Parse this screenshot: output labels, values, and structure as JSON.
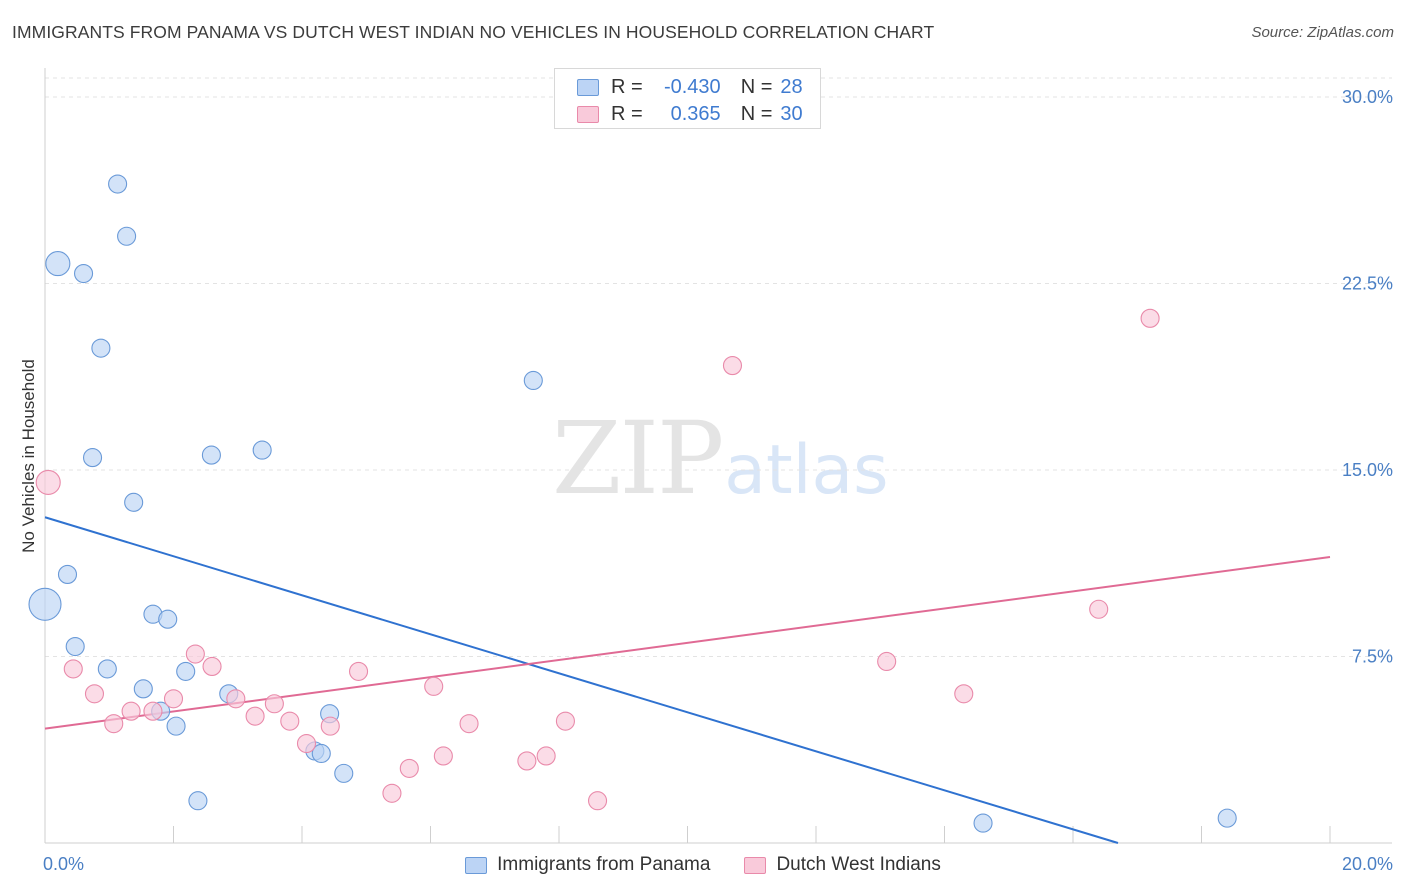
{
  "header": {
    "title": "IMMIGRANTS FROM PANAMA VS DUTCH WEST INDIAN NO VEHICLES IN HOUSEHOLD CORRELATION CHART",
    "source": "Source: ZipAtlas.com"
  },
  "watermark": {
    "part1": "ZIP",
    "part2": "atlas"
  },
  "legend": {
    "rows": [
      {
        "r_label": "R =",
        "r_value": "-0.430",
        "n_label": "N =",
        "n_value": "28",
        "color": "#6a9ad8"
      },
      {
        "r_label": "R =",
        "r_value": "0.365",
        "n_label": "N =",
        "n_value": "30",
        "color": "#e98aaa"
      }
    ]
  },
  "bottom_legend": {
    "items": [
      {
        "label": "Immigrants from Panama",
        "color": "#6a9ad8"
      },
      {
        "label": "Dutch West Indians",
        "color": "#e98aaa"
      }
    ]
  },
  "chart_data": {
    "type": "scatter",
    "title": "IMMIGRANTS FROM PANAMA VS DUTCH WEST INDIAN NO VEHICLES IN HOUSEHOLD CORRELATION CHART",
    "xlabel": "",
    "ylabel": "No Vehicles in Household",
    "xlim": [
      0,
      20
    ],
    "ylim": [
      0,
      30
    ],
    "x_tick_labels": [
      "0.0%",
      "20.0%"
    ],
    "y_ticks": [
      7.5,
      15.0,
      22.5,
      30.0
    ],
    "y_tick_labels": [
      "7.5%",
      "15.0%",
      "22.5%",
      "30.0%"
    ],
    "grid": "horizontal dashed",
    "legend_position": "top-center",
    "series": [
      {
        "name": "Immigrants from Panama",
        "color": "#6a9ad8",
        "fill": "#bcd4f5",
        "trend": {
          "x": [
            0,
            16.7
          ],
          "y": [
            13.1,
            0
          ]
        },
        "points": [
          {
            "x": 0.2,
            "y": 23.3
          },
          {
            "x": 0.6,
            "y": 22.9
          },
          {
            "x": 1.13,
            "y": 26.5
          },
          {
            "x": 1.27,
            "y": 24.4
          },
          {
            "x": 0.87,
            "y": 19.9
          },
          {
            "x": 0.74,
            "y": 15.5
          },
          {
            "x": 1.38,
            "y": 13.7
          },
          {
            "x": 0.35,
            "y": 10.8
          },
          {
            "x": 0.0,
            "y": 9.6
          },
          {
            "x": 1.68,
            "y": 9.2
          },
          {
            "x": 1.91,
            "y": 9.0
          },
          {
            "x": 0.47,
            "y": 7.9
          },
          {
            "x": 0.97,
            "y": 7.0
          },
          {
            "x": 2.19,
            "y": 6.9
          },
          {
            "x": 1.53,
            "y": 6.2
          },
          {
            "x": 2.86,
            "y": 6.0
          },
          {
            "x": 1.8,
            "y": 5.3
          },
          {
            "x": 2.04,
            "y": 4.7
          },
          {
            "x": 4.43,
            "y": 5.2
          },
          {
            "x": 4.2,
            "y": 3.7
          },
          {
            "x": 4.3,
            "y": 3.6
          },
          {
            "x": 4.65,
            "y": 2.8
          },
          {
            "x": 2.38,
            "y": 1.7
          },
          {
            "x": 2.59,
            "y": 15.6
          },
          {
            "x": 3.38,
            "y": 15.8
          },
          {
            "x": 7.6,
            "y": 18.6
          },
          {
            "x": 14.6,
            "y": 0.8
          },
          {
            "x": 18.4,
            "y": 1.0
          }
        ],
        "sizes": [
          12,
          9,
          9,
          9,
          9,
          9,
          9,
          9,
          16,
          9,
          9,
          9,
          9,
          9,
          9,
          9,
          9,
          9,
          9,
          9,
          9,
          9,
          9,
          9,
          9,
          9,
          9,
          9
        ]
      },
      {
        "name": "Dutch West Indians",
        "color": "#e98aaa",
        "fill": "#f9cada",
        "trend": {
          "x": [
            0,
            20
          ],
          "y": [
            4.6,
            11.5
          ]
        },
        "points": [
          {
            "x": 0.05,
            "y": 14.5
          },
          {
            "x": 0.44,
            "y": 7.0
          },
          {
            "x": 0.77,
            "y": 6.0
          },
          {
            "x": 1.07,
            "y": 4.8
          },
          {
            "x": 1.34,
            "y": 5.3
          },
          {
            "x": 1.68,
            "y": 5.3
          },
          {
            "x": 2.0,
            "y": 5.8
          },
          {
            "x": 2.34,
            "y": 7.6
          },
          {
            "x": 2.6,
            "y": 7.1
          },
          {
            "x": 2.97,
            "y": 5.8
          },
          {
            "x": 3.27,
            "y": 5.1
          },
          {
            "x": 3.57,
            "y": 5.6
          },
          {
            "x": 3.81,
            "y": 4.9
          },
          {
            "x": 4.07,
            "y": 4.0
          },
          {
            "x": 4.44,
            "y": 4.7
          },
          {
            "x": 4.88,
            "y": 6.9
          },
          {
            "x": 5.4,
            "y": 2.0
          },
          {
            "x": 5.67,
            "y": 3.0
          },
          {
            "x": 6.05,
            "y": 6.3
          },
          {
            "x": 6.2,
            "y": 3.5
          },
          {
            "x": 6.6,
            "y": 4.8
          },
          {
            "x": 7.5,
            "y": 3.3
          },
          {
            "x": 7.8,
            "y": 3.5
          },
          {
            "x": 8.1,
            "y": 4.9
          },
          {
            "x": 8.6,
            "y": 1.7
          },
          {
            "x": 10.7,
            "y": 19.2
          },
          {
            "x": 13.1,
            "y": 7.3
          },
          {
            "x": 14.3,
            "y": 6.0
          },
          {
            "x": 16.4,
            "y": 9.4
          },
          {
            "x": 17.2,
            "y": 21.1
          }
        ],
        "sizes": [
          12,
          9,
          9,
          9,
          9,
          9,
          9,
          9,
          9,
          9,
          9,
          9,
          9,
          9,
          9,
          9,
          9,
          9,
          9,
          9,
          9,
          9,
          9,
          9,
          9,
          9,
          9,
          9,
          9,
          9
        ]
      }
    ]
  }
}
